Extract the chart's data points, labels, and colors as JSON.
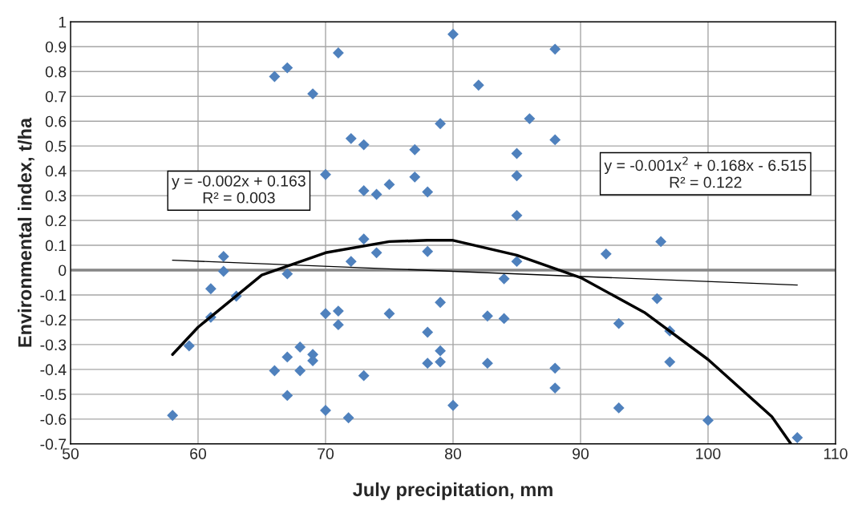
{
  "chart_data": {
    "type": "scatter",
    "xlabel": "July precipitation, mm",
    "ylabel": "Environmental index, t/ha",
    "xlim": [
      50,
      110
    ],
    "xticks": [
      50,
      60,
      70,
      80,
      90,
      100,
      110
    ],
    "ylim": [
      -0.7,
      1
    ],
    "yticks": [
      -0.7,
      -0.6,
      -0.5,
      -0.4,
      -0.3,
      -0.2,
      -0.1,
      0,
      0.1,
      0.2,
      0.3,
      0.4,
      0.5,
      0.6,
      0.7,
      0.8,
      0.9,
      1
    ],
    "grid": true,
    "marker": "diamond",
    "series": [
      {
        "color": "#4f81bd",
        "x": [
          58,
          59.3,
          61,
          61,
          62,
          62,
          63,
          66,
          66,
          67,
          67,
          67,
          67,
          68,
          68,
          69,
          69,
          69,
          70,
          70,
          70,
          71,
          71,
          71,
          71.8,
          72,
          72,
          73,
          73,
          73,
          73,
          74,
          74,
          75,
          75,
          77,
          77,
          78,
          78,
          78,
          78,
          79,
          79,
          79,
          79,
          80,
          80,
          82,
          82.7,
          82.7,
          84,
          84,
          85,
          85,
          85,
          85,
          86,
          88,
          88,
          88,
          88,
          92,
          93,
          93,
          96,
          96.3,
          97,
          97,
          100,
          107
        ],
        "values": [
          -0.585,
          -0.305,
          -0.075,
          -0.19,
          0.055,
          -0.005,
          -0.105,
          0.78,
          -0.405,
          0.815,
          -0.35,
          -0.505,
          -0.015,
          -0.31,
          -0.405,
          0.71,
          -0.34,
          -0.365,
          0.385,
          -0.175,
          -0.565,
          0.875,
          -0.165,
          -0.22,
          -0.595,
          0.53,
          0.035,
          0.505,
          0.32,
          0.125,
          -0.425,
          0.305,
          0.07,
          0.345,
          -0.175,
          0.485,
          0.375,
          0.315,
          0.075,
          -0.25,
          -0.375,
          0.59,
          -0.13,
          -0.325,
          -0.37,
          0.95,
          -0.545,
          0.745,
          -0.185,
          -0.375,
          -0.035,
          -0.195,
          0.47,
          0.38,
          0.22,
          0.035,
          0.61,
          0.89,
          0.525,
          -0.395,
          -0.475,
          0.065,
          -0.215,
          -0.555,
          -0.115,
          0.115,
          -0.245,
          -0.37,
          -0.605,
          -0.675
        ]
      },
      {
        "type": "line",
        "color": "#000000",
        "marker": "none",
        "x": [
          58,
          107
        ],
        "values": [
          0.04,
          -0.06
        ]
      },
      {
        "type": "line",
        "color": "#000000",
        "marker": "none",
        "x": [
          58,
          60,
          65,
          70,
          75,
          78,
          80,
          85,
          90,
          95,
          100,
          105,
          106.5
        ],
        "values": [
          -0.34,
          -0.23,
          -0.02,
          0.07,
          0.115,
          0.12,
          0.12,
          0.06,
          -0.03,
          -0.17,
          -0.36,
          -0.59,
          -0.7
        ]
      }
    ],
    "ref_lines": [
      {
        "axis": "y",
        "value": 0,
        "color": "#868686"
      }
    ],
    "annotations": [
      "y = -0.002x + 0.163\nR² = 0.003",
      "y = -0.001x$^{2}$ + 0.168x - 6.515\nR² = 0.122"
    ]
  }
}
